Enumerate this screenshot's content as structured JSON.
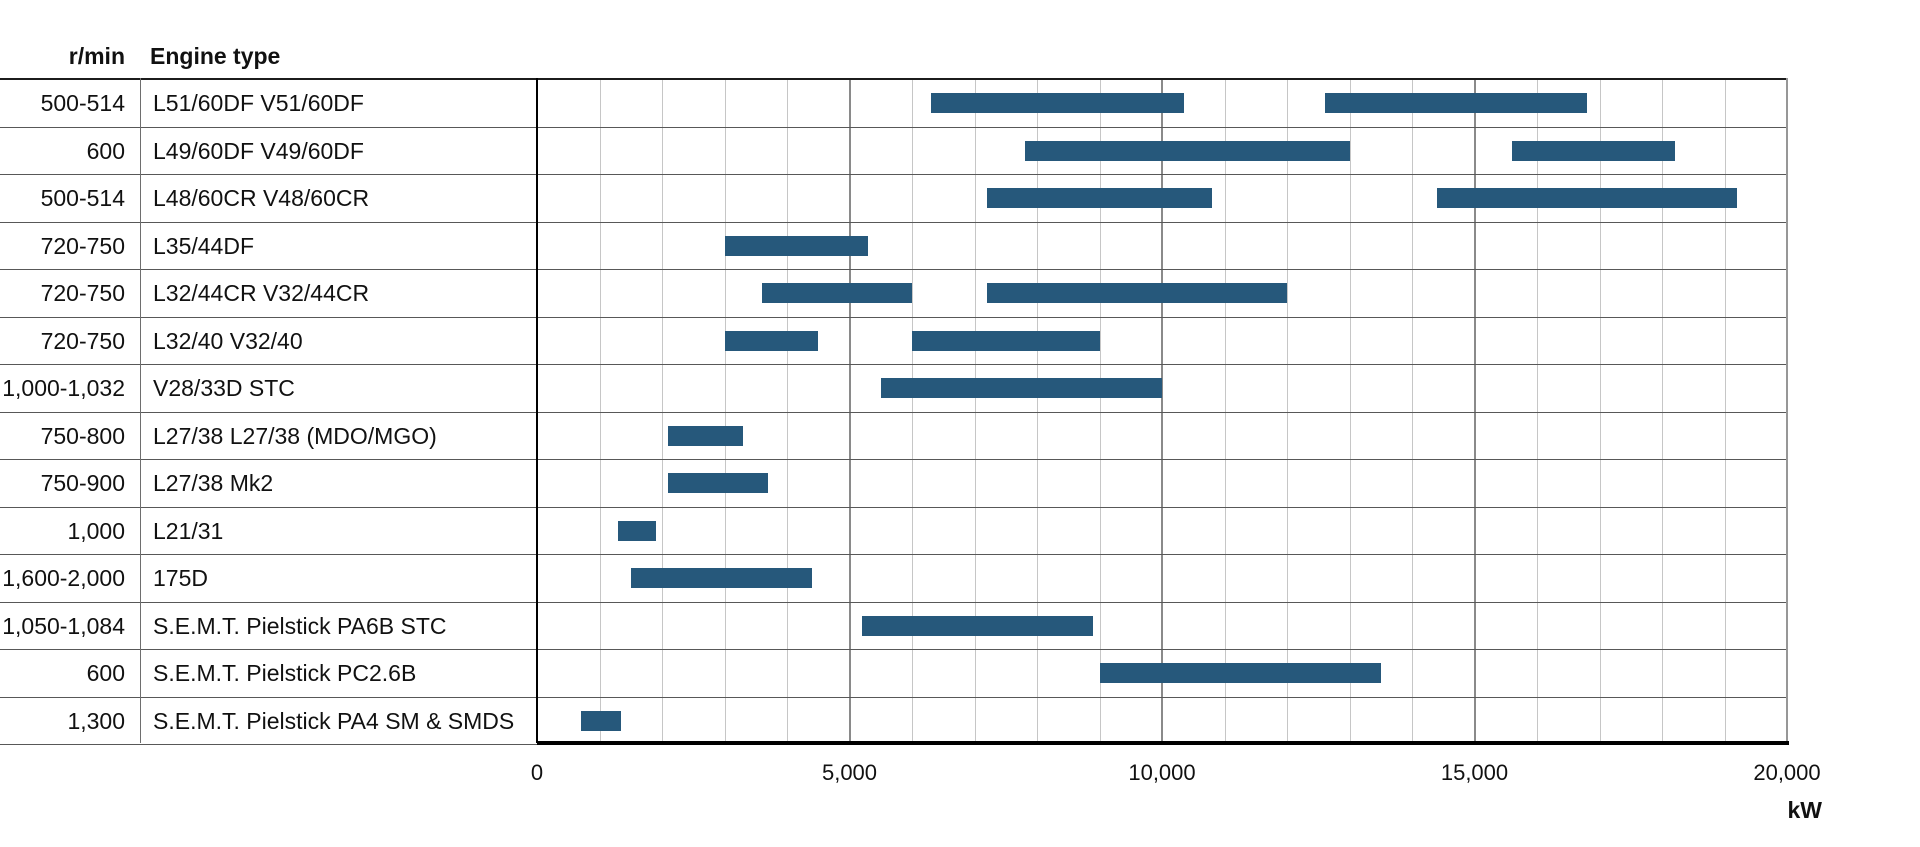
{
  "table": {
    "rpm_header": "r/min",
    "engine_header": "Engine type"
  },
  "chart_data": {
    "type": "bar",
    "subtype": "horizontal-range-gantt",
    "title": "",
    "xlabel": "kW",
    "axis": {
      "min": 0,
      "max": 20000,
      "minor_step": 1000,
      "major_step": 5000,
      "grid": true,
      "tick_labels": [
        {
          "value": 0,
          "label": "0"
        },
        {
          "value": 5000,
          "label": "5,000"
        },
        {
          "value": 10000,
          "label": "10,000"
        },
        {
          "value": 15000,
          "label": "15,000"
        },
        {
          "value": 20000,
          "label": "20,000"
        }
      ],
      "unit_label": "kW"
    },
    "rows": [
      {
        "rpm": "500-514",
        "engine": "L51/60DF V51/60DF",
        "ranges_kw": [
          [
            6300,
            10350
          ],
          [
            12600,
            16800
          ]
        ]
      },
      {
        "rpm": "600",
        "engine": "L49/60DF V49/60DF",
        "ranges_kw": [
          [
            7800,
            13000
          ],
          [
            15600,
            18200
          ]
        ]
      },
      {
        "rpm": "500-514",
        "engine": "L48/60CR V48/60CR",
        "ranges_kw": [
          [
            7200,
            10800
          ],
          [
            14400,
            19200
          ]
        ]
      },
      {
        "rpm": "720-750",
        "engine": "L35/44DF",
        "ranges_kw": [
          [
            3000,
            5300
          ]
        ]
      },
      {
        "rpm": "720-750",
        "engine": "L32/44CR V32/44CR",
        "ranges_kw": [
          [
            3600,
            6000
          ],
          [
            7200,
            12000
          ]
        ]
      },
      {
        "rpm": "720-750",
        "engine": "L32/40 V32/40",
        "ranges_kw": [
          [
            3000,
            4500
          ],
          [
            6000,
            9000
          ]
        ]
      },
      {
        "rpm": "1,000-1,032",
        "engine": "V28/33D STC",
        "ranges_kw": [
          [
            5500,
            10000
          ]
        ]
      },
      {
        "rpm": "750-800",
        "engine": "L27/38 L27/38 (MDO/MGO)",
        "ranges_kw": [
          [
            2100,
            3300
          ]
        ]
      },
      {
        "rpm": "750-900",
        "engine": "L27/38 Mk2",
        "ranges_kw": [
          [
            2100,
            3700
          ]
        ]
      },
      {
        "rpm": "1,000",
        "engine": "L21/31",
        "ranges_kw": [
          [
            1300,
            1900
          ]
        ]
      },
      {
        "rpm": "1,600-2,000",
        "engine": "175D",
        "ranges_kw": [
          [
            1500,
            4400
          ]
        ]
      },
      {
        "rpm": "1,050-1,084",
        "engine": "S.E.M.T. Pielstick PA6B STC",
        "ranges_kw": [
          [
            5200,
            8900
          ]
        ]
      },
      {
        "rpm": "600",
        "engine": "S.E.M.T. Pielstick PC2.6B",
        "ranges_kw": [
          [
            9000,
            13500
          ]
        ]
      },
      {
        "rpm": "1,300",
        "engine": "S.E.M.T. Pielstick PA4 SM & SMDS",
        "ranges_kw": [
          [
            700,
            1350
          ]
        ]
      }
    ],
    "colors": {
      "bar": "#26587B",
      "minor_grid": "#c6c6c6",
      "major_grid": "#8a8a8a",
      "axis_line": "#000000"
    }
  }
}
